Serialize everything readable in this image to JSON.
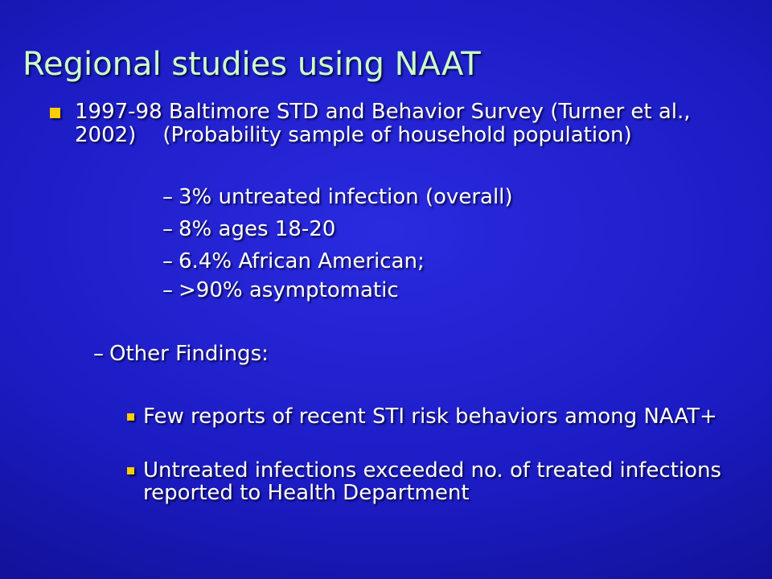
{
  "slide": {
    "title": "Regional studies using NAAT",
    "main_bullet": "1997-98 Baltimore STD and Behavior Survey (Turner et al., 2002)    (Probability sample of household population)",
    "findings": [
      {
        "dash": "–",
        "text": "3% untreated infection (overall)"
      },
      {
        "dash": "–",
        "text": "8% ages 18-20"
      },
      {
        "dash": "–",
        "text": "6.4% African American;"
      },
      {
        "dash": "–",
        "text": ">90% asymptomatic"
      }
    ],
    "other_heading": {
      "dash": "–",
      "text": "Other Findings:"
    },
    "other_items": [
      "Few reports of recent STI risk behaviors among NAAT+",
      "Untreated infections exceeded no. of treated infections reported to Health Department"
    ]
  }
}
